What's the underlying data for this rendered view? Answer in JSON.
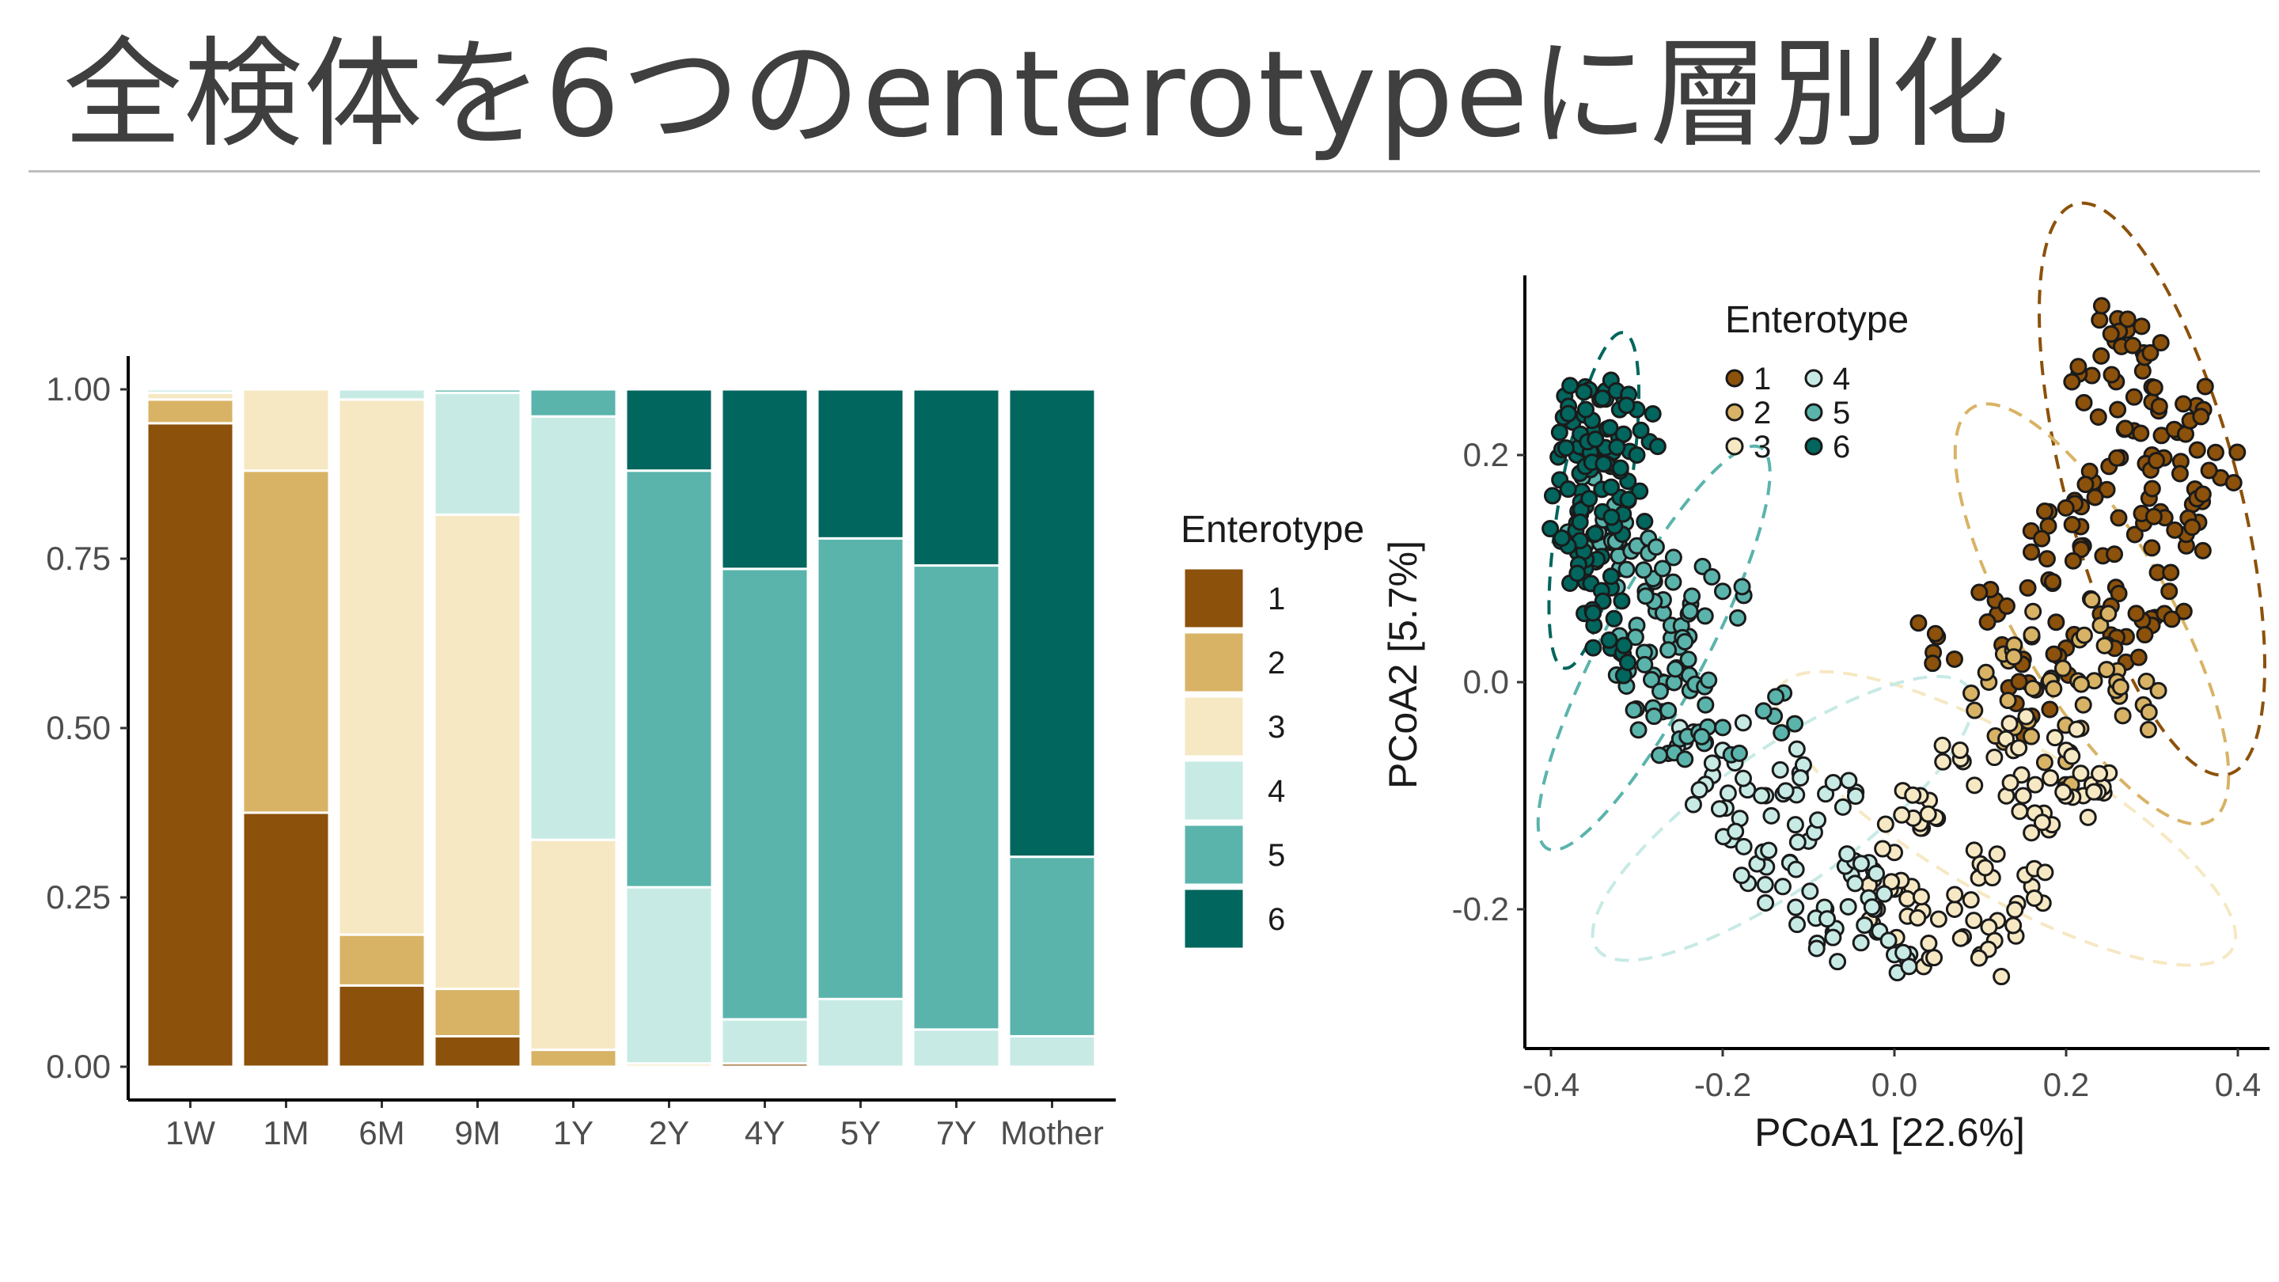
{
  "slide": {
    "title": "全検体を6つのenterotypeに層別化"
  },
  "colors": {
    "enterotype": [
      "#8c510a",
      "#d8b365",
      "#f6e8c3",
      "#c7eae5",
      "#5ab4ac",
      "#01665e"
    ],
    "axis": "#000000",
    "tick_text": "#4d4d4d",
    "title_text": "#3f3f3f"
  },
  "chart_data": [
    {
      "type": "bar",
      "stacked": true,
      "categories": [
        "1W",
        "1M",
        "6M",
        "9M",
        "1Y",
        "2Y",
        "4Y",
        "5Y",
        "7Y",
        "Mother"
      ],
      "series": [
        {
          "name": "1",
          "values": [
            0.95,
            0.375,
            0.12,
            0.045,
            0.0,
            0.0,
            0.005,
            0.0,
            0.0,
            0.0
          ]
        },
        {
          "name": "2",
          "values": [
            0.035,
            0.505,
            0.075,
            0.07,
            0.025,
            0.0,
            0.0,
            0.0,
            0.0,
            0.0
          ]
        },
        {
          "name": "3",
          "values": [
            0.01,
            0.12,
            0.79,
            0.7,
            0.31,
            0.005,
            0.0,
            0.0,
            0.0,
            0.0
          ]
        },
        {
          "name": "4",
          "values": [
            0.005,
            0.0,
            0.015,
            0.18,
            0.625,
            0.26,
            0.065,
            0.1,
            0.055,
            0.045
          ]
        },
        {
          "name": "5",
          "values": [
            0.0,
            0.0,
            0.0,
            0.005,
            0.04,
            0.615,
            0.665,
            0.68,
            0.685,
            0.265
          ]
        },
        {
          "name": "6",
          "values": [
            0.0,
            0.0,
            0.0,
            0.0,
            0.0,
            0.12,
            0.265,
            0.22,
            0.26,
            0.69
          ]
        }
      ],
      "ylim": [
        0,
        1
      ],
      "yticks": [
        "0.00",
        "0.25",
        "0.50",
        "0.75",
        "1.00"
      ],
      "legend": {
        "title": "Enterotype",
        "position": "right",
        "labels": [
          "1",
          "2",
          "3",
          "4",
          "5",
          "6"
        ]
      },
      "grid": false
    },
    {
      "type": "scatter",
      "xlabel": "PCoA1 [22.6%]",
      "ylabel": "PCoA2 [5.7%]",
      "xlim": [
        -0.42,
        0.43
      ],
      "ylim": [
        -0.32,
        0.34
      ],
      "xticks": [
        "-0.4",
        "-0.2",
        "0.0",
        "0.2",
        "0.4"
      ],
      "yticks": [
        "-0.2",
        "0.0",
        "0.2"
      ],
      "xtick_values": [
        -0.4,
        -0.2,
        0.0,
        0.2,
        0.4
      ],
      "ytick_values": [
        -0.2,
        0.0,
        0.2
      ],
      "legend": {
        "title": "Enterotype",
        "position": "top-left inside",
        "labels": [
          "1",
          "2",
          "3",
          "4",
          "5",
          "6"
        ]
      },
      "grid": false,
      "ellipses": "dashed 95% ellipse per enterotype",
      "series": [
        {
          "name": "1",
          "points": [
            [
              0.26,
              0.3
            ],
            [
              0.3,
              0.26
            ],
            [
              0.33,
              0.22
            ],
            [
              0.35,
              0.17
            ],
            [
              0.3,
              0.2
            ],
            [
              0.25,
              0.19
            ],
            [
              0.22,
              0.12
            ],
            [
              0.24,
              0.06
            ],
            [
              0.2,
              0.03
            ],
            [
              0.18,
              0.09
            ],
            [
              0.28,
              0.13
            ],
            [
              0.32,
              0.08
            ],
            [
              0.27,
              0.04
            ],
            [
              0.15,
              0.02
            ],
            [
              0.12,
              0.06
            ],
            [
              0.36,
              0.24
            ],
            [
              0.29,
              0.29
            ],
            [
              0.34,
              0.12
            ],
            [
              0.21,
              0.16
            ],
            [
              0.26,
              0.24
            ],
            [
              0.23,
              0.27
            ],
            [
              0.31,
              0.15
            ],
            [
              0.18,
              0.15
            ],
            [
              0.05,
              0.04
            ],
            [
              0.26,
              0.32
            ],
            [
              0.38,
              0.18
            ],
            [
              0.16,
              -0.03
            ],
            [
              0.3,
              0.05
            ]
          ]
        },
        {
          "name": "2",
          "points": [
            [
              0.18,
              0.0
            ],
            [
              0.22,
              -0.02
            ],
            [
              0.14,
              -0.04
            ],
            [
              0.26,
              0.01
            ],
            [
              0.2,
              -0.07
            ],
            [
              0.11,
              0.0
            ],
            [
              0.29,
              -0.02
            ],
            [
              0.24,
              0.05
            ],
            [
              0.16,
              0.04
            ]
          ]
        },
        {
          "name": "3",
          "points": [
            [
              0.05,
              -0.12
            ],
            [
              0.1,
              -0.16
            ],
            [
              0.15,
              -0.1
            ],
            [
              0.02,
              -0.18
            ],
            [
              0.08,
              -0.07
            ],
            [
              0.12,
              -0.21
            ],
            [
              0.18,
              -0.13
            ],
            [
              0.04,
              -0.23
            ],
            [
              0.2,
              -0.06
            ],
            [
              0.0,
              -0.15
            ],
            [
              0.22,
              -0.1
            ],
            [
              0.07,
              -0.2
            ],
            [
              0.13,
              -0.05
            ],
            [
              -0.02,
              -0.2
            ],
            [
              0.16,
              -0.18
            ],
            [
              0.1,
              -0.24
            ],
            [
              0.25,
              -0.08
            ],
            [
              0.03,
              -0.1
            ]
          ]
        },
        {
          "name": "4",
          "points": [
            [
              -0.15,
              -0.1
            ],
            [
              -0.1,
              -0.14
            ],
            [
              -0.05,
              -0.17
            ],
            [
              -0.2,
              -0.06
            ],
            [
              -0.13,
              -0.18
            ],
            [
              -0.08,
              -0.2
            ],
            [
              -0.02,
              -0.22
            ],
            [
              -0.18,
              -0.12
            ],
            [
              -0.22,
              -0.09
            ],
            [
              -0.11,
              -0.08
            ],
            [
              -0.06,
              -0.11
            ],
            [
              -0.03,
              -0.19
            ],
            [
              -0.16,
              -0.16
            ],
            [
              0.0,
              -0.24
            ],
            [
              -0.25,
              -0.04
            ],
            [
              -0.09,
              -0.23
            ]
          ]
        },
        {
          "name": "5",
          "points": [
            [
              -0.3,
              0.05
            ],
            [
              -0.27,
              0.0
            ],
            [
              -0.25,
              -0.05
            ],
            [
              -0.32,
              0.1
            ],
            [
              -0.29,
              0.08
            ],
            [
              -0.24,
              0.02
            ],
            [
              -0.33,
              0.14
            ],
            [
              -0.28,
              -0.03
            ],
            [
              -0.26,
              0.05
            ],
            [
              -0.31,
              0.01
            ],
            [
              -0.22,
              -0.02
            ],
            [
              -0.35,
              0.18
            ],
            [
              -0.3,
              0.12
            ],
            [
              -0.2,
              -0.04
            ],
            [
              -0.14,
              -0.03
            ],
            [
              -0.2,
              0.08
            ],
            [
              -0.27,
              0.1
            ],
            [
              -0.36,
              0.12
            ],
            [
              -0.24,
              0.06
            ]
          ]
        },
        {
          "name": "6",
          "points": [
            [
              -0.37,
              0.2
            ],
            [
              -0.35,
              0.22
            ],
            [
              -0.34,
              0.15
            ],
            [
              -0.36,
              0.1
            ],
            [
              -0.38,
              0.17
            ],
            [
              -0.33,
              0.19
            ],
            [
              -0.32,
              0.24
            ],
            [
              -0.36,
              0.26
            ],
            [
              -0.35,
              0.13
            ],
            [
              -0.39,
              0.22
            ],
            [
              -0.34,
              0.08
            ],
            [
              -0.31,
              0.16
            ],
            [
              -0.37,
              0.14
            ],
            [
              -0.35,
              0.05
            ],
            [
              -0.33,
              0.03
            ],
            [
              -0.38,
              0.12
            ],
            [
              -0.3,
              0.2
            ],
            [
              -0.36,
              0.19
            ],
            [
              -0.34,
              0.25
            ],
            [
              -0.3,
              0.24
            ]
          ]
        }
      ]
    }
  ]
}
